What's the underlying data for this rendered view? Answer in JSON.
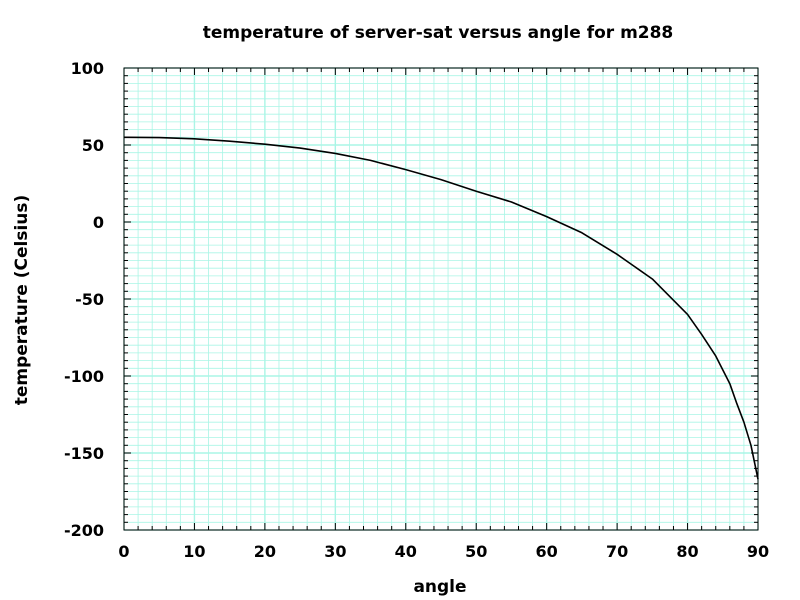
{
  "chart_data": {
    "type": "line",
    "title": "temperature of server-sat versus angle for m288",
    "xlabel": "angle",
    "ylabel": "temperature (Celsius)",
    "xlim": [
      0,
      90
    ],
    "ylim": [
      -200,
      100
    ],
    "xticks": [
      0,
      10,
      20,
      30,
      40,
      50,
      60,
      70,
      80,
      90
    ],
    "yticks": [
      100,
      50,
      0,
      -50,
      -100,
      -150,
      -200
    ],
    "grid": true,
    "grid_color": "#aaf5e6",
    "line_color": "#000000",
    "series": [
      {
        "x": [
          0,
          5,
          10,
          15,
          20,
          25,
          30,
          35,
          40,
          45,
          50,
          55,
          60,
          65,
          70,
          75,
          80,
          82,
          84,
          86,
          87,
          88,
          89,
          90
        ],
        "values": [
          55,
          54.8,
          54,
          52.5,
          50.5,
          48,
          44.5,
          40,
          34,
          27.5,
          20,
          13,
          3.5,
          -7,
          -21,
          -37,
          -60,
          -73,
          -87,
          -105,
          -118,
          -130,
          -145,
          -167
        ]
      }
    ]
  }
}
